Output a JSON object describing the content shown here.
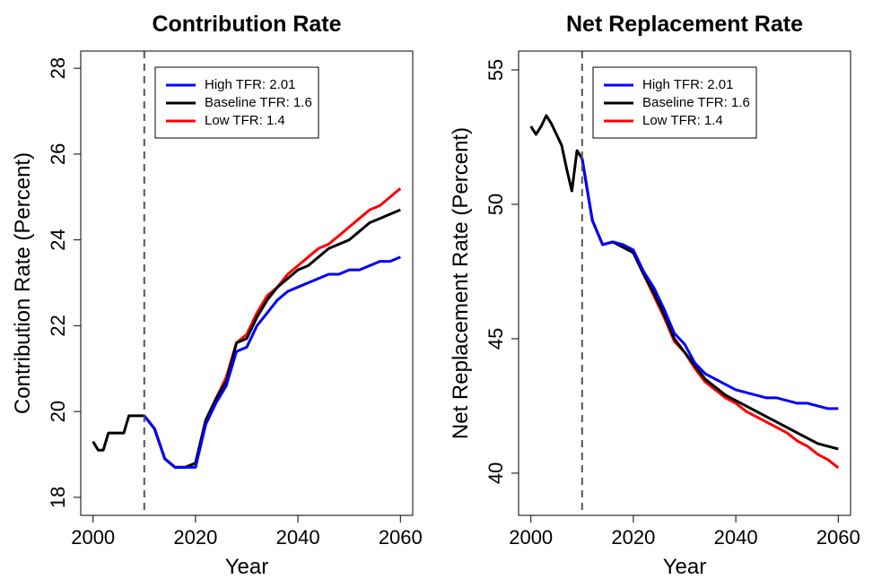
{
  "chart_data": [
    {
      "type": "line",
      "title": "Contribution Rate",
      "x_label": "Year",
      "y_label": "Contribution Rate (Percent)",
      "x": [
        2000,
        2001,
        2002,
        2003,
        2004,
        2005,
        2006,
        2007,
        2008,
        2009,
        2010,
        2012,
        2014,
        2016,
        2018,
        2020,
        2022,
        2024,
        2026,
        2028,
        2030,
        2032,
        2034,
        2036,
        2038,
        2040,
        2042,
        2044,
        2046,
        2048,
        2050,
        2052,
        2054,
        2056,
        2058,
        2060
      ],
      "xlim": [
        1997.6,
        2062.4
      ],
      "xticks": [
        2000,
        2020,
        2040,
        2060
      ],
      "ylim": [
        17.58,
        28.4
      ],
      "yticks": [
        18,
        20,
        22,
        24,
        26,
        28
      ],
      "reference_line_x": 2010,
      "legend": "top",
      "series": [
        {
          "name": "High TFR: 2.01",
          "color": "#0000ff",
          "values": [
            null,
            null,
            null,
            null,
            null,
            null,
            null,
            null,
            null,
            null,
            19.9,
            19.6,
            18.9,
            18.7,
            18.7,
            18.7,
            19.7,
            20.2,
            20.6,
            21.4,
            21.5,
            22.0,
            22.3,
            22.6,
            22.8,
            22.9,
            23.0,
            23.1,
            23.2,
            23.2,
            23.3,
            23.3,
            23.4,
            23.5,
            23.5,
            23.6
          ]
        },
        {
          "name": "Baseline TFR: 1.6",
          "color": "#000000",
          "values": [
            19.3,
            19.1,
            19.1,
            19.5,
            19.5,
            19.5,
            19.5,
            19.9,
            19.9,
            19.9,
            19.9,
            19.6,
            18.9,
            18.7,
            18.7,
            18.8,
            19.8,
            20.3,
            20.7,
            21.6,
            21.7,
            22.2,
            22.6,
            22.9,
            23.1,
            23.3,
            23.4,
            23.6,
            23.8,
            23.9,
            24.0,
            24.2,
            24.4,
            24.5,
            24.6,
            24.7
          ]
        },
        {
          "name": "Low TFR: 1.4",
          "color": "#ff0000",
          "values": [
            null,
            null,
            null,
            null,
            null,
            null,
            null,
            null,
            null,
            null,
            19.9,
            19.6,
            18.9,
            18.7,
            18.7,
            18.8,
            19.8,
            20.3,
            20.8,
            21.6,
            21.8,
            22.3,
            22.7,
            22.9,
            23.2,
            23.4,
            23.6,
            23.8,
            23.9,
            24.1,
            24.3,
            24.5,
            24.7,
            24.8,
            25.0,
            25.2
          ]
        }
      ]
    },
    {
      "type": "line",
      "title": "Net Replacement Rate",
      "x_label": "Year",
      "y_label": "Net Replacement Rate (Percent)",
      "x": [
        2000,
        2001,
        2002,
        2003,
        2004,
        2005,
        2006,
        2007,
        2008,
        2009,
        2010,
        2012,
        2014,
        2016,
        2018,
        2020,
        2022,
        2024,
        2026,
        2028,
        2030,
        2032,
        2034,
        2036,
        2038,
        2040,
        2042,
        2044,
        2046,
        2048,
        2050,
        2052,
        2054,
        2056,
        2058,
        2060
      ],
      "xlim": [
        1997.6,
        2062.4
      ],
      "xticks": [
        2000,
        2020,
        2040,
        2060
      ],
      "ylim": [
        38.43,
        55.7
      ],
      "yticks": [
        40,
        45,
        50,
        55
      ],
      "reference_line_x": 2010,
      "legend": "top",
      "series": [
        {
          "name": "High TFR: 2.01",
          "color": "#0000ff",
          "values": [
            null,
            null,
            null,
            null,
            null,
            null,
            null,
            null,
            null,
            null,
            51.7,
            49.4,
            48.5,
            48.6,
            48.5,
            48.3,
            47.5,
            46.9,
            46.1,
            45.2,
            44.8,
            44.1,
            43.7,
            43.5,
            43.3,
            43.1,
            43.0,
            42.9,
            42.8,
            42.8,
            42.7,
            42.6,
            42.6,
            42.5,
            42.4,
            42.4
          ]
        },
        {
          "name": "Baseline TFR: 1.6",
          "color": "#000000",
          "values": [
            52.9,
            52.6,
            52.9,
            53.3,
            53.0,
            52.6,
            52.2,
            51.3,
            50.5,
            52.0,
            51.7,
            49.4,
            48.5,
            48.6,
            48.4,
            48.2,
            47.4,
            46.7,
            45.9,
            45.0,
            44.5,
            44.0,
            43.5,
            43.2,
            42.9,
            42.7,
            42.5,
            42.3,
            42.1,
            41.9,
            41.7,
            41.5,
            41.3,
            41.1,
            41.0,
            40.9
          ]
        },
        {
          "name": "Low TFR: 1.4",
          "color": "#ff0000",
          "values": [
            null,
            null,
            null,
            null,
            null,
            null,
            null,
            null,
            null,
            null,
            51.7,
            49.4,
            48.5,
            48.6,
            48.4,
            48.2,
            47.4,
            46.6,
            45.8,
            44.9,
            44.5,
            43.9,
            43.4,
            43.1,
            42.8,
            42.6,
            42.3,
            42.1,
            41.9,
            41.7,
            41.5,
            41.2,
            41.0,
            40.7,
            40.5,
            40.2
          ]
        }
      ]
    }
  ]
}
